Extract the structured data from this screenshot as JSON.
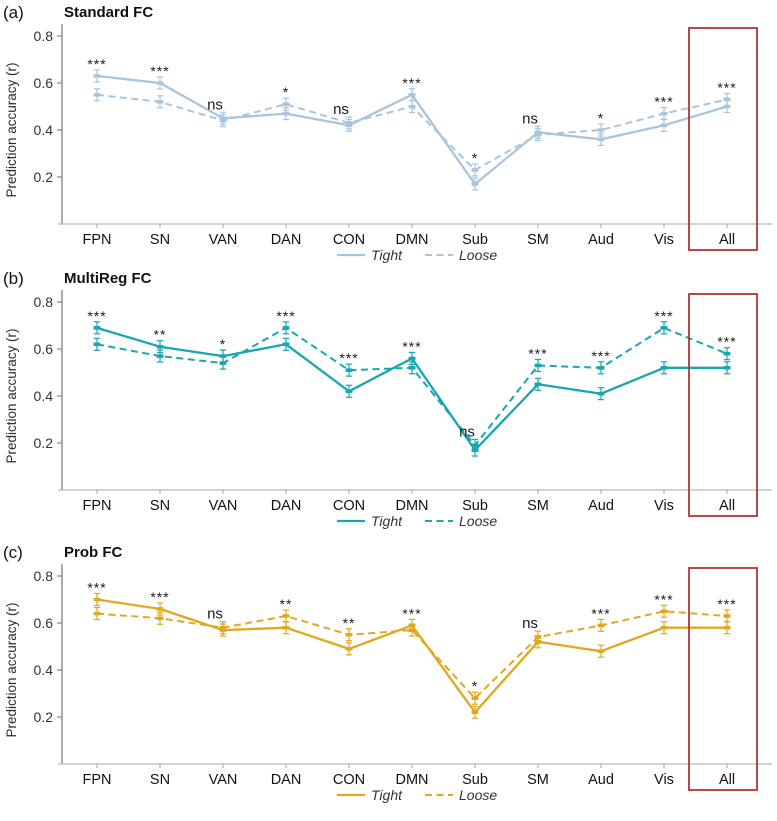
{
  "figure": {
    "ylabel": "Prediction accuracy (r)",
    "legend": {
      "tight_label": "Tight",
      "loose_label": "Loose"
    },
    "colors": {
      "standard_fc": "#a9c5de",
      "multireg_fc": "#17a6b2",
      "prob_fc": "#e0a81f",
      "highlight_box": "#b23434",
      "y_axis": "#8f8f8f",
      "x_axis": "#b8b8b8",
      "tick_text": "#333333",
      "label_text": "#111111"
    }
  },
  "chart_data": [
    {
      "type": "line",
      "panel_label": "(a)",
      "title": "Standard FC",
      "color": "#a9c5de",
      "ylabel": "Prediction accuracy (r)",
      "yticks": [
        0.2,
        0.4,
        0.6,
        0.8
      ],
      "ylim": [
        0,
        0.85
      ],
      "grid": false,
      "legend_position": "bottom",
      "categories": [
        "FPN",
        "SN",
        "VAN",
        "DAN",
        "CON",
        "DMN",
        "Sub",
        "SM",
        "Aud",
        "Vis",
        "All"
      ],
      "series": [
        {
          "name": "Tight",
          "style": "solid",
          "values": [
            0.63,
            0.6,
            0.45,
            0.47,
            0.42,
            0.55,
            0.17,
            0.39,
            0.36,
            0.42,
            0.5
          ]
        },
        {
          "name": "Loose",
          "style": "dashed",
          "values": [
            0.55,
            0.52,
            0.44,
            0.51,
            0.43,
            0.5,
            0.23,
            0.38,
            0.4,
            0.47,
            0.53
          ]
        }
      ],
      "error_bar": 0.012,
      "significance": [
        "***",
        "***",
        "ns",
        "*",
        "ns",
        "***",
        "*",
        "ns",
        "*",
        "***",
        "***"
      ],
      "highlight_box_category": "All",
      "legend": [
        "Tight",
        "Loose"
      ]
    },
    {
      "type": "line",
      "panel_label": "(b)",
      "title": "MultiReg FC",
      "color": "#17a6b2",
      "ylabel": "Prediction accuracy (r)",
      "yticks": [
        0.2,
        0.4,
        0.6,
        0.8
      ],
      "ylim": [
        0,
        0.85
      ],
      "grid": false,
      "legend_position": "bottom",
      "categories": [
        "FPN",
        "SN",
        "VAN",
        "DAN",
        "CON",
        "DMN",
        "Sub",
        "SM",
        "Aud",
        "Vis",
        "All"
      ],
      "series": [
        {
          "name": "Tight",
          "style": "solid",
          "values": [
            0.69,
            0.61,
            0.57,
            0.62,
            0.42,
            0.56,
            0.17,
            0.45,
            0.41,
            0.52,
            0.52
          ]
        },
        {
          "name": "Loose",
          "style": "dashed",
          "values": [
            0.62,
            0.57,
            0.54,
            0.69,
            0.51,
            0.52,
            0.19,
            0.53,
            0.52,
            0.69,
            0.58
          ]
        }
      ],
      "error_bar": 0.012,
      "significance": [
        "***",
        "**",
        "*",
        "***",
        "***",
        "***",
        "ns",
        "***",
        "***",
        "***",
        "***"
      ],
      "highlight_box_category": "All",
      "legend": [
        "Tight",
        "Loose"
      ]
    },
    {
      "type": "line",
      "panel_label": "(c)",
      "title": "Prob FC",
      "color": "#e0a81f",
      "ylabel": "Prediction accuracy (r)",
      "yticks": [
        0.2,
        0.4,
        0.6,
        0.8
      ],
      "ylim": [
        0,
        0.85
      ],
      "grid": false,
      "legend_position": "bottom",
      "categories": [
        "FPN",
        "SN",
        "VAN",
        "DAN",
        "CON",
        "DMN",
        "Sub",
        "SM",
        "Aud",
        "Vis",
        "All"
      ],
      "series": [
        {
          "name": "Tight",
          "style": "solid",
          "values": [
            0.7,
            0.66,
            0.57,
            0.58,
            0.49,
            0.59,
            0.22,
            0.52,
            0.48,
            0.58,
            0.58
          ]
        },
        {
          "name": "Loose",
          "style": "dashed",
          "values": [
            0.64,
            0.62,
            0.58,
            0.63,
            0.55,
            0.57,
            0.28,
            0.54,
            0.59,
            0.65,
            0.63
          ]
        }
      ],
      "error_bar": 0.012,
      "significance": [
        "***",
        "***",
        "ns",
        "**",
        "**",
        "***",
        "*",
        "ns",
        "***",
        "***",
        "***"
      ],
      "highlight_box_category": "All",
      "legend": [
        "Tight",
        "Loose"
      ]
    }
  ]
}
